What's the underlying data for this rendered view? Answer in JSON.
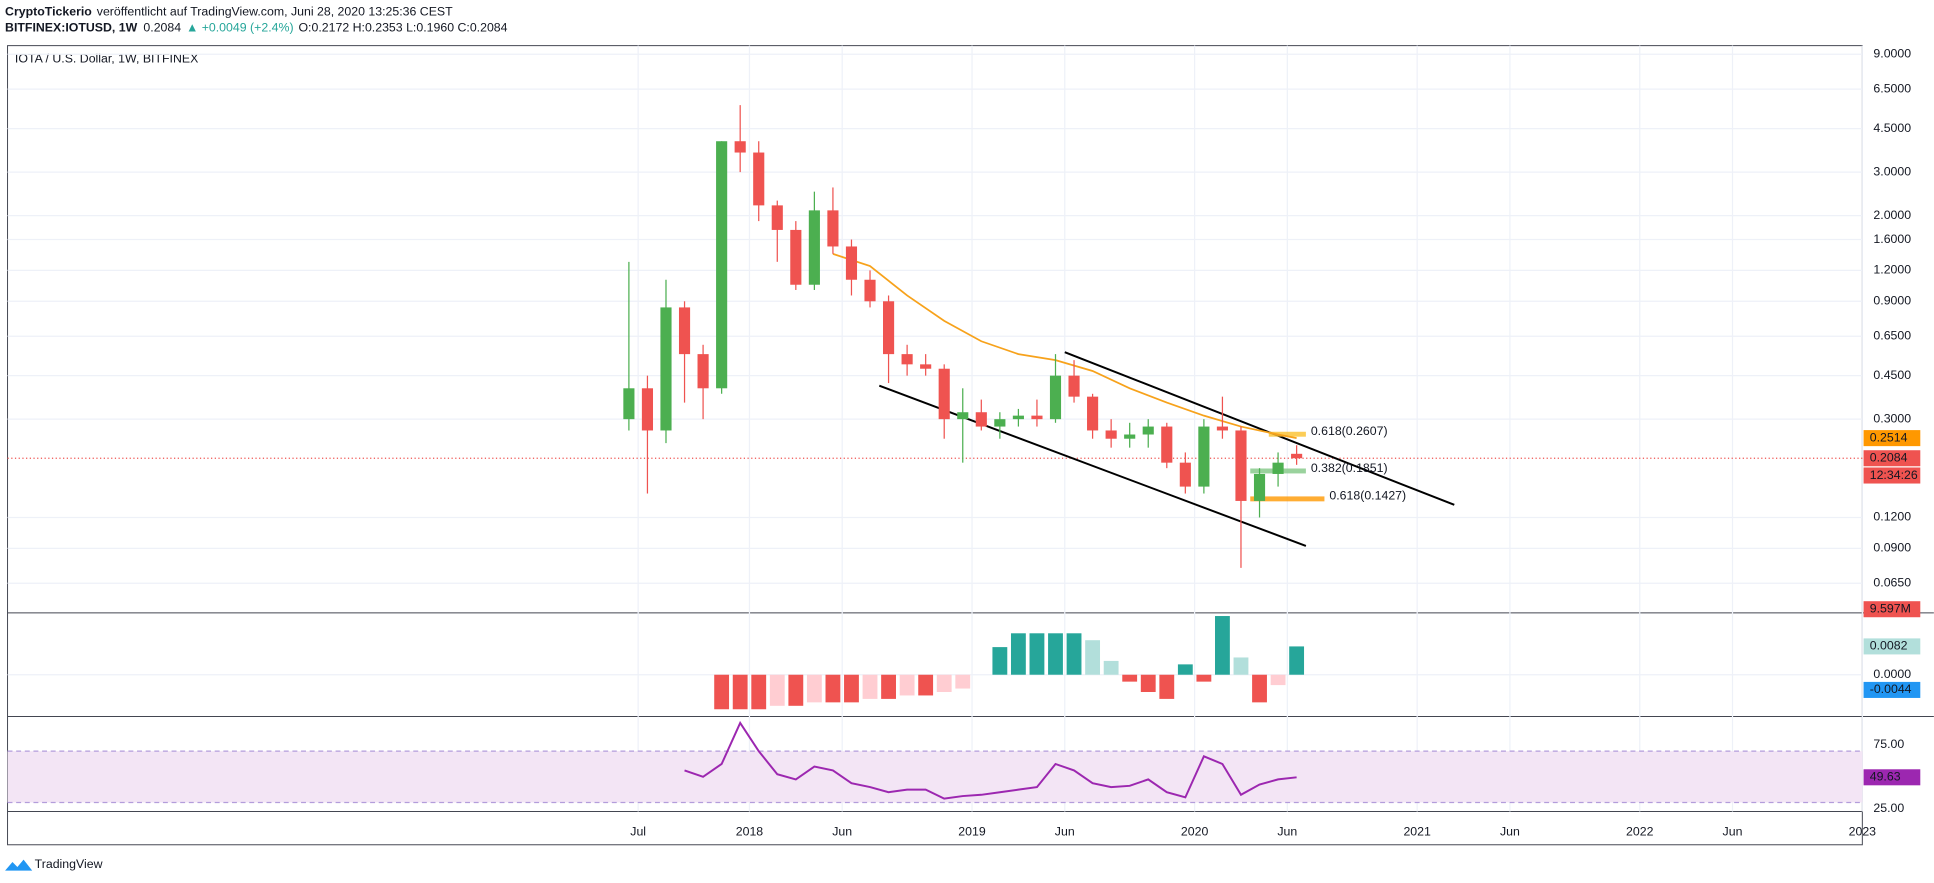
{
  "header": {
    "author": "CryptoTickerio",
    "published": "veröffentlicht auf TradingView.com, Juni 28, 2020 13:25:36 CEST",
    "symbol": "BITFINEX:IOTUSD, 1W",
    "last": "0.2084",
    "change": "▲ +0.0049 (+2.4%)",
    "ohlc": "O:0.2172 H:0.2353 L:0.1960 C:0.2084"
  },
  "footer": {
    "brand": "TradingView"
  },
  "chart_data": {
    "type": "candlestick",
    "title": "IOTA / U.S. Dollar, 1W, BITFINEX",
    "log_scale": true,
    "grid": true,
    "up_color": "#4caf50",
    "down_color": "#ef5350",
    "xlim": [
      "2014-09",
      "2023-01"
    ],
    "xticks": [
      {
        "value": "2017-07",
        "label": "Jul"
      },
      {
        "value": "2018-01",
        "label": "2018"
      },
      {
        "value": "2018-06",
        "label": "Jun"
      },
      {
        "value": "2019-01",
        "label": "2019"
      },
      {
        "value": "2019-06",
        "label": "Jun"
      },
      {
        "value": "2020-01",
        "label": "2020"
      },
      {
        "value": "2020-06",
        "label": "Jun"
      },
      {
        "value": "2021-01",
        "label": "2021"
      },
      {
        "value": "2021-06",
        "label": "Jun"
      },
      {
        "value": "2022-01",
        "label": "2022"
      },
      {
        "value": "2022-06",
        "label": "Jun"
      },
      {
        "value": "2023-01",
        "label": "2023"
      }
    ],
    "ylim": [
      0.0493,
      9.75
    ],
    "yticks": [
      {
        "value": 9,
        "label": "9.0000"
      },
      {
        "value": 6.5,
        "label": "6.5000"
      },
      {
        "value": 4.5,
        "label": "4.5000"
      },
      {
        "value": 3,
        "label": "3.0000"
      },
      {
        "value": 2,
        "label": "2.0000"
      },
      {
        "value": 1.6,
        "label": "1.6000"
      },
      {
        "value": 1.2,
        "label": "1.2000"
      },
      {
        "value": 0.9,
        "label": "0.9000"
      },
      {
        "value": 0.65,
        "label": "0.6500"
      },
      {
        "value": 0.45,
        "label": "0.4500"
      },
      {
        "value": 0.3,
        "label": "0.3000"
      },
      {
        "value": 0.12,
        "label": "0.1200"
      },
      {
        "value": 0.09,
        "label": "0.0900"
      },
      {
        "value": 0.065,
        "label": "0.0650"
      }
    ],
    "x": [
      "2017-06",
      "2017-07",
      "2017-08",
      "2017-09",
      "2017-10",
      "2017-11",
      "2017-12",
      "2018-01",
      "2018-02",
      "2018-03",
      "2018-04",
      "2018-05",
      "2018-06",
      "2018-07",
      "2018-08",
      "2018-09",
      "2018-10",
      "2018-11",
      "2018-12",
      "2019-01",
      "2019-02",
      "2019-03",
      "2019-04",
      "2019-05",
      "2019-06",
      "2019-07",
      "2019-08",
      "2019-09",
      "2019-10",
      "2019-11",
      "2019-12",
      "2020-01",
      "2020-02",
      "2020-03",
      "2020-04",
      "2020-05",
      "2020-06"
    ],
    "open": [
      0.3,
      0.4,
      0.27,
      0.85,
      0.55,
      0.4,
      4.0,
      3.6,
      2.2,
      1.75,
      1.05,
      2.1,
      1.5,
      1.1,
      0.9,
      0.55,
      0.5,
      0.48,
      0.3,
      0.32,
      0.28,
      0.3,
      0.31,
      0.3,
      0.45,
      0.37,
      0.27,
      0.25,
      0.26,
      0.28,
      0.2,
      0.16,
      0.28,
      0.27,
      0.14,
      0.18,
      0.2172
    ],
    "high": [
      1.3,
      0.45,
      1.1,
      0.9,
      0.6,
      4.0,
      5.6,
      4.0,
      2.3,
      1.9,
      2.5,
      2.6,
      1.6,
      1.2,
      0.95,
      0.6,
      0.55,
      0.5,
      0.4,
      0.36,
      0.32,
      0.33,
      0.36,
      0.55,
      0.52,
      0.38,
      0.3,
      0.29,
      0.3,
      0.29,
      0.22,
      0.3,
      0.37,
      0.28,
      0.19,
      0.22,
      0.2353
    ],
    "low": [
      0.27,
      0.15,
      0.24,
      0.35,
      0.3,
      0.38,
      3.0,
      1.9,
      1.3,
      1.0,
      1.0,
      1.4,
      0.95,
      0.85,
      0.42,
      0.45,
      0.45,
      0.25,
      0.2,
      0.27,
      0.25,
      0.28,
      0.28,
      0.29,
      0.35,
      0.25,
      0.23,
      0.23,
      0.23,
      0.19,
      0.15,
      0.15,
      0.25,
      0.075,
      0.12,
      0.16,
      0.196
    ],
    "close": [
      0.4,
      0.27,
      0.85,
      0.55,
      0.4,
      4.0,
      3.6,
      2.2,
      1.75,
      1.05,
      2.1,
      1.5,
      1.1,
      0.9,
      0.55,
      0.5,
      0.48,
      0.3,
      0.32,
      0.28,
      0.3,
      0.31,
      0.3,
      0.45,
      0.37,
      0.27,
      0.25,
      0.26,
      0.28,
      0.2,
      0.16,
      0.28,
      0.27,
      0.14,
      0.18,
      0.2,
      0.2084
    ],
    "ma": {
      "color": "#f7a21b",
      "x": [
        "2018-05",
        "2018-07",
        "2018-09",
        "2018-11",
        "2019-01",
        "2019-03",
        "2019-05",
        "2019-07",
        "2019-09",
        "2019-11",
        "2020-01",
        "2020-03",
        "2020-05",
        "2020-06"
      ],
      "values": [
        1.4,
        1.25,
        0.95,
        0.75,
        0.62,
        0.55,
        0.52,
        0.47,
        0.4,
        0.35,
        0.31,
        0.28,
        0.26,
        0.2514
      ]
    },
    "trendlines": [
      {
        "x": [
          "2019-06",
          "2021-03"
        ],
        "values": [
          0.56,
          0.135
        ]
      },
      {
        "x": [
          "2018-08",
          "2020-07"
        ],
        "values": [
          0.41,
          0.092
        ]
      }
    ],
    "fib_levels": [
      {
        "label": "0.618(0.2607)",
        "value": 0.2607,
        "color": "#fbc02d",
        "start": "2020-05",
        "end": "2020-07"
      },
      {
        "label": "0.382(0.1851)",
        "value": 0.1851,
        "color": "#81c784",
        "start": "2020-04",
        "end": "2020-07"
      },
      {
        "label": "0.618(0.1427)",
        "value": 0.1427,
        "color": "#ff9800",
        "start": "2020-04",
        "end": "2020-08"
      }
    ],
    "price_badges": [
      {
        "label": "0.2514",
        "value": 0.2514,
        "color": "#ff9800"
      },
      {
        "label": "0.2084",
        "value": 0.2084,
        "color": "#ef5350"
      }
    ],
    "countdown": "12:34:26",
    "volume_badge": "9.597M",
    "macd": {
      "ylim": [
        -0.0121,
        0.0179
      ],
      "yticks": [
        {
          "value": 0,
          "label": "0.0000"
        }
      ],
      "colors": [
        "#26a69a",
        "#b2dfdb",
        "#ef5350",
        "#ffcdd2"
      ],
      "x": [
        "2017-11",
        "2017-12",
        "2018-01",
        "2018-02",
        "2018-03",
        "2018-04",
        "2018-05",
        "2018-06",
        "2018-07",
        "2018-08",
        "2018-09",
        "2018-10",
        "2018-11",
        "2018-12",
        "2019-02",
        "2019-03",
        "2019-04",
        "2019-05",
        "2019-06",
        "2019-07",
        "2019-08",
        "2019-09",
        "2019-10",
        "2019-11",
        "2019-12",
        "2020-01",
        "2020-02",
        "2020-03",
        "2020-04",
        "2020-05",
        "2020-06"
      ],
      "values": [
        -0.01,
        -0.01,
        -0.01,
        -0.009,
        -0.009,
        -0.008,
        -0.008,
        -0.008,
        -0.007,
        -0.007,
        -0.006,
        -0.006,
        -0.005,
        -0.004,
        0.008,
        0.012,
        0.012,
        0.012,
        0.012,
        0.01,
        0.004,
        -0.002,
        -0.005,
        -0.007,
        0.003,
        -0.002,
        0.017,
        0.005,
        -0.008,
        -0.003,
        0.0082
      ],
      "badges": [
        {
          "label": "0.0082",
          "value": 0.0082,
          "color": "#b2dfdb"
        },
        {
          "label": "-0.0044",
          "value": -0.0044,
          "color": "#2196f3"
        }
      ]
    },
    "rsi": {
      "ylim": [
        23,
        97
      ],
      "band": [
        30,
        70
      ],
      "color": "#9c27b0",
      "yticks": [
        {
          "value": 75,
          "label": "75.00"
        },
        {
          "value": 25,
          "label": "25.00"
        }
      ],
      "x": [
        "2017-09",
        "2017-10",
        "2017-11",
        "2017-12",
        "2018-01",
        "2018-02",
        "2018-03",
        "2018-04",
        "2018-05",
        "2018-06",
        "2018-07",
        "2018-08",
        "2018-09",
        "2018-10",
        "2018-11",
        "2018-12",
        "2019-01",
        "2019-02",
        "2019-03",
        "2019-04",
        "2019-05",
        "2019-06",
        "2019-07",
        "2019-08",
        "2019-09",
        "2019-10",
        "2019-11",
        "2019-12",
        "2020-01",
        "2020-02",
        "2020-03",
        "2020-04",
        "2020-05",
        "2020-06"
      ],
      "values": [
        55,
        50,
        60,
        92,
        70,
        52,
        48,
        58,
        55,
        45,
        42,
        38,
        40,
        40,
        33,
        35,
        36,
        38,
        40,
        42,
        60,
        55,
        45,
        42,
        43,
        48,
        38,
        34,
        66,
        60,
        36,
        44,
        48,
        49.63
      ],
      "badge": {
        "label": "49.63",
        "value": 49.63
      }
    }
  }
}
